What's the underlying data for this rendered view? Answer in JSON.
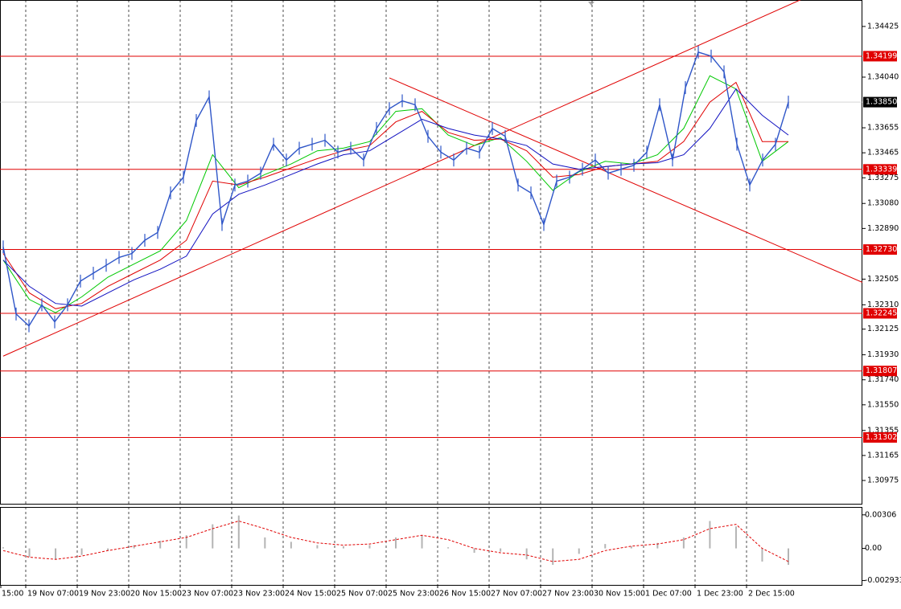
{
  "chart_data": {
    "type": "price",
    "ylim": [
      1.30792,
      1.34626
    ],
    "yticks": [
      1.34425,
      {
        "value": 1.3404,
        "label": "1.34040"
      },
      1.33655,
      1.33465,
      1.33275,
      {
        "value": 1.3308,
        "label": "1.33080"
      },
      {
        "value": 1.3289,
        "label": "1.32890"
      },
      1.32505,
      {
        "value": 1.3231,
        "label": "1.32310"
      },
      1.32125,
      {
        "value": 1.3193,
        "label": "1.31930"
      },
      {
        "value": 1.3174,
        "label": "1.31740"
      },
      {
        "value": 1.3155,
        "label": "1.31550"
      },
      1.31355,
      1.31165,
      1.30975
    ],
    "categories": [
      "15:00",
      "19 Nov 07:00",
      "19 Nov 23:00",
      "20 Nov 15:00",
      "23 Nov 07:00",
      "23 Nov 23:00",
      "24 Nov 15:00",
      "25 Nov 07:00",
      "25 Nov 23:00",
      "26 Nov 15:00",
      "27 Nov 07:00",
      "27 Nov 23:00",
      "30 Nov 15:00",
      "1 Dec 07:00",
      "1 Dec 23:00",
      "2 Dec 15:00"
    ],
    "price": {
      "color": "#2f56c8",
      "values": [
        1.3275,
        1.3224,
        1.3215,
        1.3231,
        1.3218,
        1.3231,
        1.3249,
        1.3255,
        1.3261,
        1.3267,
        1.327,
        1.328,
        1.3286,
        1.3316,
        1.3328,
        1.3371,
        1.3389,
        1.3292,
        1.3322,
        1.3325,
        1.3331,
        1.3353,
        1.3341,
        1.335,
        1.3353,
        1.3356,
        1.3347,
        1.335,
        1.3341,
        1.3365,
        1.338,
        1.3386,
        1.3383,
        1.3359,
        1.3347,
        1.3341,
        1.335,
        1.3347,
        1.3365,
        1.3359,
        1.3322,
        1.3316,
        1.3292,
        1.3325,
        1.3328,
        1.3334,
        1.3341,
        1.3331,
        1.3334,
        1.3337,
        1.3347,
        1.3383,
        1.3341,
        1.3396,
        1.3423,
        1.342,
        1.3408,
        1.3353,
        1.3322,
        1.3341,
        1.3353,
        1.3385
      ]
    },
    "averages": [
      {
        "color": "#00c800",
        "values": [
          1.3265,
          1.3235,
          1.3225,
          1.3237,
          1.3252,
          1.3262,
          1.3272,
          1.3295,
          1.3345,
          1.332,
          1.333,
          1.3338,
          1.3348,
          1.335,
          1.3355,
          1.3378,
          1.338,
          1.336,
          1.3352,
          1.3358,
          1.334,
          1.3318,
          1.3332,
          1.334,
          1.3338,
          1.3345,
          1.3365,
          1.3405,
          1.3395,
          1.334,
          1.3355
        ]
      },
      {
        "color": "#e00000",
        "values": [
          1.327,
          1.324,
          1.3228,
          1.3232,
          1.3245,
          1.3255,
          1.3265,
          1.328,
          1.3325,
          1.3322,
          1.3328,
          1.3335,
          1.3342,
          1.3348,
          1.3352,
          1.337,
          1.3378,
          1.3362,
          1.3356,
          1.3357,
          1.3348,
          1.3328,
          1.333,
          1.3336,
          1.3338,
          1.334,
          1.3355,
          1.3385,
          1.34,
          1.3355,
          1.3355
        ]
      },
      {
        "color": "#1010c0",
        "values": [
          1.3265,
          1.3245,
          1.3232,
          1.323,
          1.324,
          1.325,
          1.3258,
          1.3268,
          1.33,
          1.3315,
          1.3322,
          1.333,
          1.3338,
          1.3345,
          1.3348,
          1.336,
          1.3372,
          1.3365,
          1.336,
          1.3357,
          1.3352,
          1.3338,
          1.3334,
          1.3336,
          1.3338,
          1.3339,
          1.3345,
          1.3365,
          1.3395,
          1.3375,
          1.336
        ]
      }
    ],
    "levels": [
      1.34199,
      1.33339,
      {
        "value": 1.3273,
        "label": "1.32730"
      },
      1.32245,
      1.31807,
      1.31302
    ],
    "current": {
      "value": 1.3385,
      "label": "1.33850"
    },
    "trendlines": [
      {
        "points": [
          [
            0,
            1.3192
          ],
          [
            62,
            1.3463
          ]
        ]
      },
      {
        "points": [
          [
            30,
            1.34034
          ],
          [
            67,
            1.3247
          ]
        ]
      }
    ],
    "oscillator": {
      "ylim": [
        -0.00333,
        0.00378
      ],
      "yticks": [
        0.00306,
        {
          "value": 0,
          "label": "0.00"
        },
        -0.002933
      ],
      "histogram": [
        0.0001,
        -0.0008,
        -0.001,
        -0.0006,
        -0.0002,
        0.0003,
        0.0007,
        0.0012,
        0.0022,
        0.003,
        0.001,
        0.0006,
        0.0003,
        0.0002,
        0.0003,
        0.001,
        0.0012,
        0.0001,
        -0.0004,
        -0.0003,
        -0.001,
        -0.0015,
        -0.0005,
        0.0004,
        0.0002,
        0.0005,
        0.001,
        0.0025,
        0.002,
        -0.0012,
        -0.0015
      ],
      "signal": [
        -0.0002,
        -0.0008,
        -0.001,
        -0.0007,
        -0.0002,
        0.0002,
        0.0006,
        0.001,
        0.0018,
        0.0025,
        0.0018,
        0.001,
        0.0005,
        0.0003,
        0.0004,
        0.0008,
        0.0012,
        0.0008,
        0.0,
        -0.0004,
        -0.0006,
        -0.0012,
        -0.001,
        -0.0002,
        0.0002,
        0.0004,
        0.0008,
        0.0018,
        0.0022,
        0.0,
        -0.0012
      ]
    }
  }
}
